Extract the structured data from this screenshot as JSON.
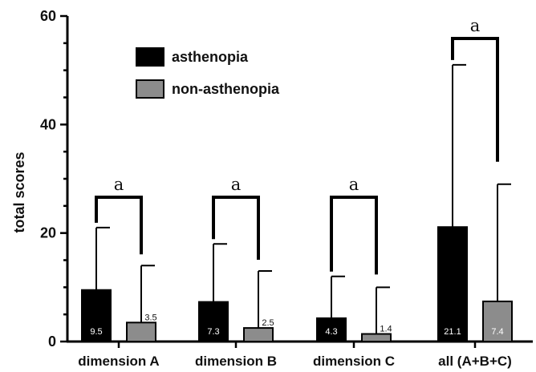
{
  "chart_data": {
    "type": "bar",
    "ylabel": "total scores",
    "ylim": [
      0,
      60
    ],
    "yticks": [
      "0",
      "20",
      "40",
      "60"
    ],
    "categories": [
      "dimension A",
      "dimension B",
      "dimension C",
      "all (A+B+C)"
    ],
    "series": [
      {
        "name": "asthenopia",
        "color": "#000000",
        "values": [
          9.5,
          7.3,
          4.3,
          21.1
        ],
        "error_upper": [
          21,
          18,
          12,
          51
        ],
        "labels": [
          "9.5",
          "7.3",
          "4.3",
          "21.1"
        ]
      },
      {
        "name": "non-asthenopia",
        "color": "#8c8c8c",
        "values": [
          3.5,
          2.5,
          1.4,
          7.4
        ],
        "error_upper": [
          14,
          13,
          10,
          29
        ],
        "labels": [
          "3.5",
          "2.5",
          "1.4",
          "7.4"
        ]
      }
    ],
    "significance": [
      {
        "category": 0,
        "label": "a"
      },
      {
        "category": 1,
        "label": "a"
      },
      {
        "category": 2,
        "label": "a"
      },
      {
        "category": 3,
        "label": "a"
      }
    ],
    "legend_position": "top-left"
  }
}
